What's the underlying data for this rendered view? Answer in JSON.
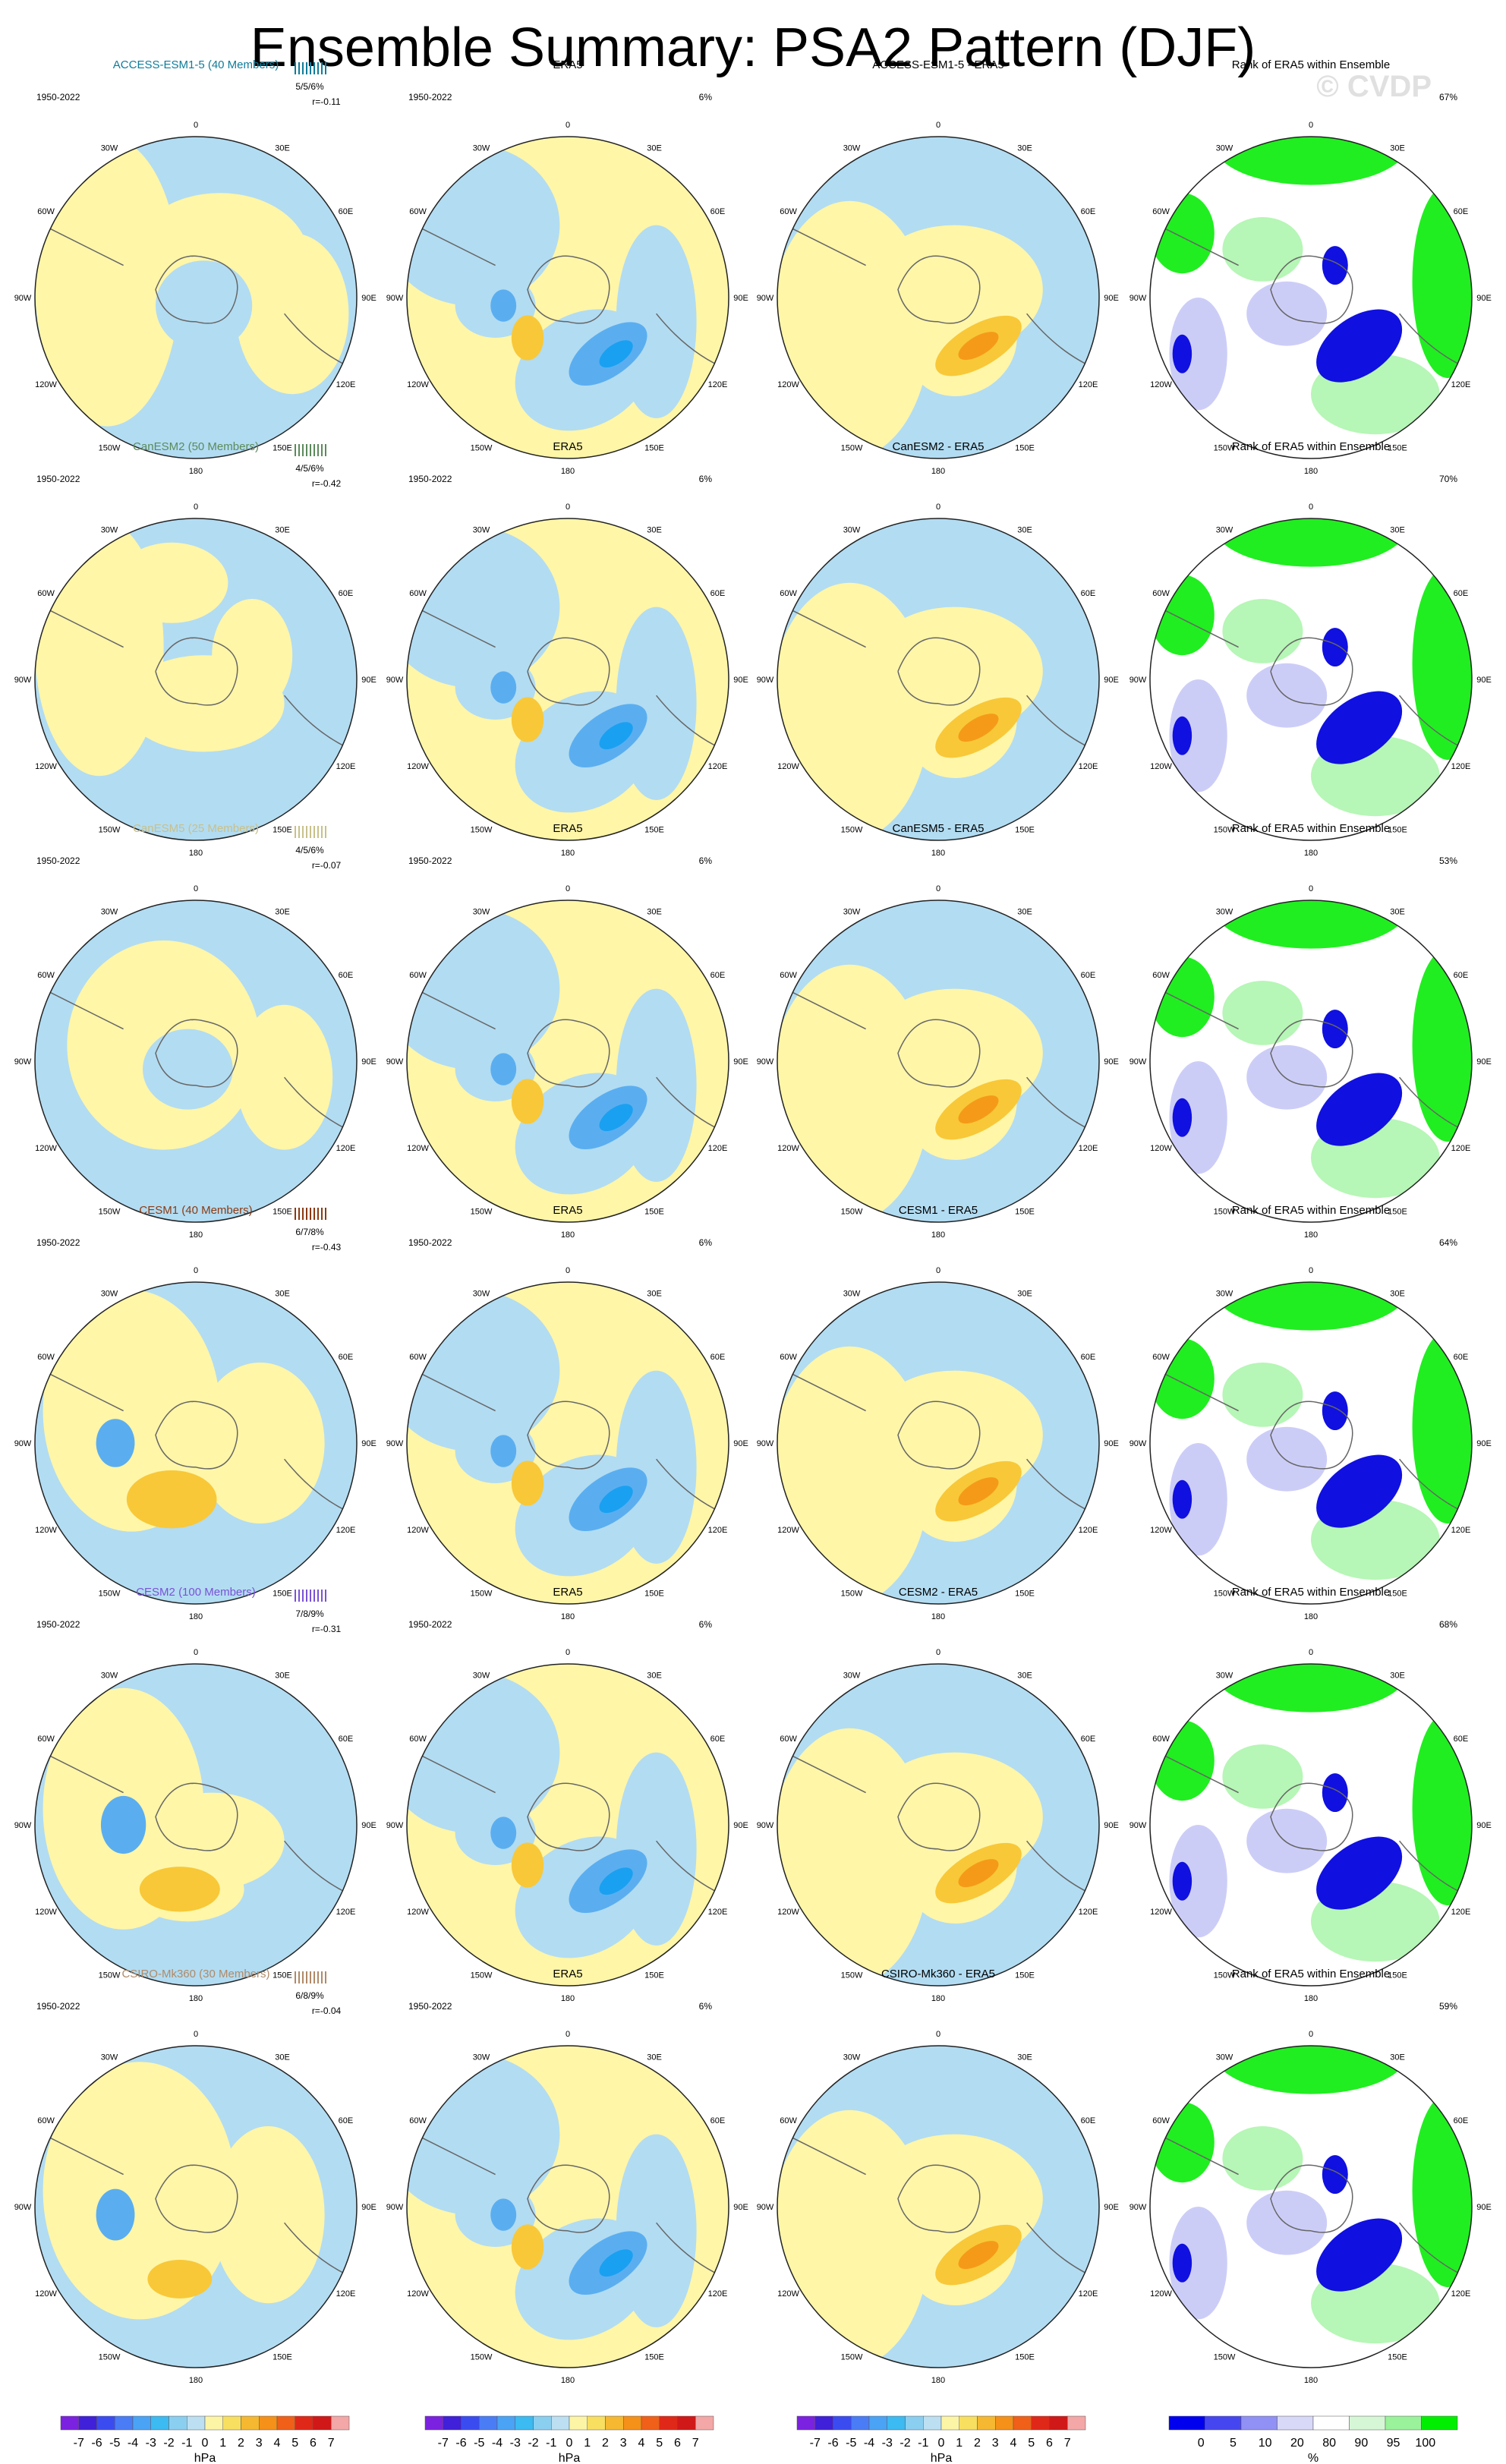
{
  "header": {
    "title": "Ensemble Summary: PSA2 Pattern (DJF)",
    "watermark": "© CVDP"
  },
  "panel_titles": {
    "obs": "ERA5",
    "rank": "Rank of ERA5 within Ensemble"
  },
  "axis_labels": [
    "0",
    "30E",
    "60E",
    "90E",
    "120E",
    "150E",
    "180",
    "150W",
    "120W",
    "90W",
    "60W",
    "30W"
  ],
  "obs_period": "1950-2022",
  "obs_pct": "6%",
  "rows": [
    {
      "model": "ACCESS-ESM1-5 (40 Members)",
      "model_color": "#0e7c9a",
      "diff_title": "ACCESS-ESM1-5 - ERA5",
      "period": "1950-2022",
      "pct": "5/5/6%",
      "r": "r=-0.11",
      "rank_pct": "67%"
    },
    {
      "model": "CanESM2 (50 Members)",
      "model_color": "#5c8a5c",
      "diff_title": "CanESM2 - ERA5",
      "period": "1950-2022",
      "pct": "4/5/6%",
      "r": "r=-0.42",
      "rank_pct": "70%"
    },
    {
      "model": "CanESM5 (25 Members)",
      "model_color": "#c8c08a",
      "diff_title": "CanESM5 - ERA5",
      "period": "1950-2022",
      "pct": "4/5/6%",
      "r": "r=-0.07",
      "rank_pct": "53%"
    },
    {
      "model": "CESM1 (40 Members)",
      "model_color": "#8b3a12",
      "diff_title": "CESM1 - ERA5",
      "period": "1950-2022",
      "pct": "6/7/8%",
      "r": "r=-0.43",
      "rank_pct": "64%"
    },
    {
      "model": "CESM2 (100 Members)",
      "model_color": "#7a52d6",
      "diff_title": "CESM2 - ERA5",
      "period": "1950-2022",
      "pct": "7/8/9%",
      "r": "r=-0.31",
      "rank_pct": "68%"
    },
    {
      "model": "CSIRO-Mk360 (30 Members)",
      "model_color": "#b08a68",
      "diff_title": "CSIRO-Mk360 - ERA5",
      "period": "1950-2022",
      "pct": "6/8/9%",
      "r": "r=-0.04",
      "rank_pct": "59%"
    }
  ],
  "legend_hpa": {
    "ticks": [
      "-7",
      "-6",
      "-5",
      "-4",
      "-3",
      "-2",
      "-1",
      "0",
      "1",
      "2",
      "3",
      "4",
      "5",
      "6",
      "7"
    ],
    "unit": "hPa",
    "colors": [
      "#7b22e0",
      "#4020d8",
      "#3a4cf0",
      "#4a7df5",
      "#4aa3f5",
      "#3cbaf2",
      "#8bcff0",
      "#bce0f2",
      "#fdf5a6",
      "#f8df60",
      "#f5b830",
      "#f59018",
      "#f06018",
      "#e02818",
      "#d01818",
      "#f3a7a7"
    ]
  },
  "legend_rank": {
    "ticks": [
      "0",
      "5",
      "10",
      "20",
      "80",
      "90",
      "95",
      "100"
    ],
    "unit": "%",
    "colors": [
      "#0000ee",
      "#4646f0",
      "#9090f5",
      "#d8d8f8",
      "#ffffff",
      "#d6f7d6",
      "#9af39a",
      "#00ee00"
    ]
  },
  "colors": {
    "blue": "#b2dcf2",
    "yellow": "#fff6a8",
    "mid_blue": "#5aaef0",
    "deep_blue": "#1aa0f0",
    "orange": "#f8c838",
    "dark_orange": "#f59a18",
    "rank_blue": "#1010e0",
    "rank_green": "#20ee20",
    "rank_lilac": "#cccdf7",
    "rank_lightgreen": "#b6f6b6"
  }
}
